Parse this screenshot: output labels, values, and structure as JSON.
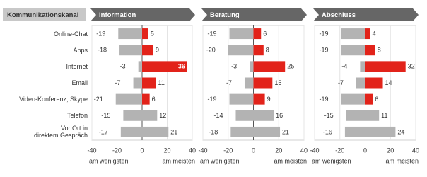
{
  "header": "Kommunikationskanal",
  "chart_data": [
    {
      "type": "bar",
      "title": "Information",
      "categories": [
        "Online-Chat",
        "Apps",
        "Internet",
        "Email",
        "Video-Konferenz, Skype",
        "Telefon",
        "Vor Ort in\ndirektem Gespräch"
      ],
      "series": [
        {
          "values": [
            -19,
            -18,
            -3,
            -7,
            -21,
            -15,
            -17
          ],
          "color": "#b3b3b3"
        },
        {
          "values": [
            5,
            9,
            36,
            11,
            6,
            12,
            21
          ],
          "colors": [
            "#e2231a",
            "#e2231a",
            "#e2231a",
            "#e2231a",
            "#e2231a",
            "#b3b3b3",
            "#b3b3b3"
          ]
        }
      ],
      "xlim": [
        -40,
        40
      ],
      "xticks": [
        -40,
        -20,
        0,
        20,
        40
      ],
      "xlabel_left": "am wenigsten",
      "xlabel_right": "am meisten"
    },
    {
      "type": "bar",
      "title": "Beratung",
      "series": [
        {
          "values": [
            -19,
            -20,
            -3,
            -7,
            -19,
            -14,
            -18
          ],
          "color": "#b3b3b3"
        },
        {
          "values": [
            6,
            8,
            25,
            15,
            9,
            16,
            21
          ],
          "colors": [
            "#e2231a",
            "#e2231a",
            "#e2231a",
            "#e2231a",
            "#e2231a",
            "#b3b3b3",
            "#b3b3b3"
          ]
        }
      ],
      "xlim": [
        -40,
        40
      ],
      "xticks": [
        -40,
        -20,
        0,
        20,
        40
      ],
      "xlabel_left": "am wenigsten",
      "xlabel_right": "am meisten"
    },
    {
      "type": "bar",
      "title": "Abschluss",
      "series": [
        {
          "values": [
            -19,
            -19,
            -4,
            -7,
            -19,
            -15,
            -16
          ],
          "color": "#b3b3b3"
        },
        {
          "values": [
            4,
            8,
            32,
            14,
            6,
            11,
            24
          ],
          "colors": [
            "#e2231a",
            "#e2231a",
            "#e2231a",
            "#e2231a",
            "#e2231a",
            "#b3b3b3",
            "#b3b3b3"
          ]
        }
      ],
      "xlim": [
        -40,
        40
      ],
      "xticks": [
        -40,
        -20,
        0,
        20,
        40
      ],
      "xlabel_left": "am wenigsten",
      "xlabel_right": "am meisten"
    }
  ]
}
